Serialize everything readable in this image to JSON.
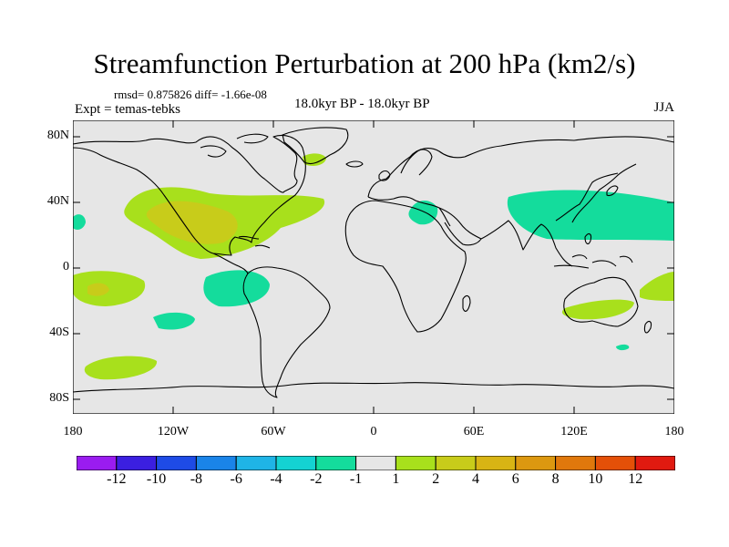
{
  "title": "Streamfunction Perturbation at 200 hPa (km2/s)",
  "stats": "rmsd= 0.875826 diff= -1.66e-08",
  "experiment": "Expt = temas-tebks",
  "period": "18.0kyr BP - 18.0kyr BP",
  "season": "JJA",
  "y_ticks": [
    "80N",
    "40N",
    "0",
    "40S",
    "80S"
  ],
  "x_ticks": [
    "180",
    "120W",
    "60W",
    "0",
    "60E",
    "120E",
    "180"
  ],
  "colorbar": {
    "colors": [
      "#9a1cf0",
      "#3b1fe0",
      "#1e4be6",
      "#1a84e8",
      "#1fb4e6",
      "#14d2d2",
      "#14dc9c",
      "#e6e6e6",
      "#a8e01c",
      "#c8cc1a",
      "#d8b414",
      "#dc9810",
      "#e0780c",
      "#e45008",
      "#e01a10"
    ],
    "labels": [
      "-12",
      "-10",
      "-8",
      "-6",
      "-4",
      "-2",
      "-1",
      "1",
      "2",
      "4",
      "6",
      "8",
      "10",
      "12"
    ]
  },
  "field": {
    "background_level": "-1 to 1",
    "anomalies": [
      {
        "region": "North Pacific / North America",
        "level": "2",
        "color": "#a8e01c"
      },
      {
        "region": "North America core",
        "level": "4",
        "color": "#c8cc1a"
      },
      {
        "region": "Subtropical South Pacific",
        "level": "2",
        "color": "#a8e01c"
      },
      {
        "region": "South Pacific west of South America",
        "level": "-2",
        "color": "#14dc9c"
      },
      {
        "region": "Western North Pacific / Asia",
        "level": "-2",
        "color": "#14dc9c"
      },
      {
        "region": "Mediterranean / Middle East",
        "level": "-2",
        "color": "#14dc9c"
      },
      {
        "region": "Greenland",
        "level": "2",
        "color": "#a8e01c"
      },
      {
        "region": "Australia / Tasman",
        "level": "2",
        "color": "#a8e01c"
      }
    ]
  }
}
